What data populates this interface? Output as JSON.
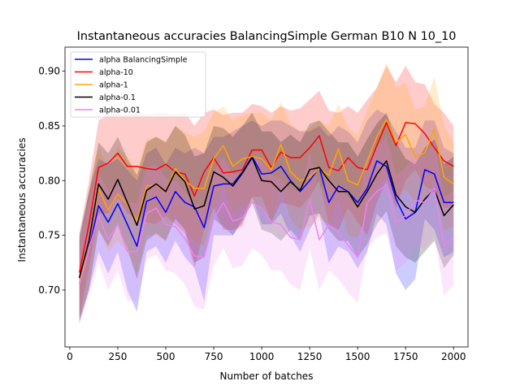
{
  "chart_data": {
    "type": "line",
    "title": "Instantaneous accuracies BalancingSimple German B10 N 10_10",
    "xlabel": "Number of batches",
    "ylabel": "Instantaneous accuracies",
    "xlim": [
      -25,
      2075
    ],
    "ylim": [
      0.648,
      0.922
    ],
    "xticks": [
      0,
      250,
      500,
      750,
      1000,
      1250,
      1500,
      1750,
      2000
    ],
    "yticks": [
      0.7,
      0.75,
      0.8,
      0.85,
      0.9
    ],
    "xtick_labels": [
      "0",
      "250",
      "500",
      "750",
      "1000",
      "1250",
      "1500",
      "1750",
      "2000"
    ],
    "ytick_labels": [
      "0.70",
      "0.75",
      "0.80",
      "0.85",
      "0.90"
    ],
    "grid": false,
    "legend_position": "top-left",
    "x": [
      50,
      100,
      150,
      200,
      250,
      300,
      350,
      400,
      450,
      500,
      550,
      600,
      650,
      700,
      750,
      800,
      850,
      900,
      950,
      1000,
      1050,
      1100,
      1150,
      1200,
      1250,
      1300,
      1350,
      1400,
      1450,
      1500,
      1550,
      1600,
      1650,
      1700,
      1750,
      1800,
      1850,
      1900,
      1950,
      2000
    ],
    "series": [
      {
        "name": "alpha BalancingSimple",
        "color": "#0000ff",
        "band_color": "#0000ff",
        "values": [
          0.712,
          0.738,
          0.777,
          0.762,
          0.779,
          0.76,
          0.74,
          0.781,
          0.785,
          0.771,
          0.79,
          0.78,
          0.776,
          0.757,
          0.795,
          0.797,
          0.797,
          0.808,
          0.822,
          0.806,
          0.807,
          0.813,
          0.8,
          0.79,
          0.8,
          0.812,
          0.78,
          0.795,
          0.79,
          0.78,
          0.793,
          0.818,
          0.813,
          0.783,
          0.765,
          0.771,
          0.81,
          0.806,
          0.78,
          0.78
        ],
        "upper": [
          0.745,
          0.79,
          0.82,
          0.815,
          0.82,
          0.81,
          0.8,
          0.825,
          0.83,
          0.815,
          0.83,
          0.825,
          0.83,
          0.825,
          0.84,
          0.84,
          0.845,
          0.85,
          0.855,
          0.85,
          0.855,
          0.855,
          0.85,
          0.845,
          0.845,
          0.85,
          0.84,
          0.85,
          0.845,
          0.835,
          0.855,
          0.865,
          0.86,
          0.845,
          0.83,
          0.83,
          0.855,
          0.855,
          0.83,
          0.825
        ],
        "lower": [
          0.67,
          0.7,
          0.735,
          0.715,
          0.735,
          0.7,
          0.68,
          0.735,
          0.74,
          0.725,
          0.745,
          0.73,
          0.72,
          0.69,
          0.75,
          0.75,
          0.75,
          0.765,
          0.785,
          0.76,
          0.76,
          0.77,
          0.75,
          0.735,
          0.755,
          0.77,
          0.725,
          0.74,
          0.735,
          0.72,
          0.735,
          0.77,
          0.76,
          0.715,
          0.7,
          0.71,
          0.765,
          0.755,
          0.73,
          0.735
        ]
      },
      {
        "name": "alpha-10",
        "color": "#ff0000",
        "band_color": "#ff0000",
        "values": [
          0.716,
          0.76,
          0.812,
          0.816,
          0.825,
          0.813,
          0.813,
          0.811,
          0.81,
          0.815,
          0.808,
          0.806,
          0.786,
          0.808,
          0.821,
          0.807,
          0.808,
          0.81,
          0.828,
          0.828,
          0.812,
          0.826,
          0.821,
          0.821,
          0.83,
          0.841,
          0.812,
          0.809,
          0.821,
          0.812,
          0.81,
          0.832,
          0.853,
          0.832,
          0.853,
          0.852,
          0.843,
          0.83,
          0.818,
          0.813
        ],
        "upper": [
          0.752,
          0.8,
          0.855,
          0.86,
          0.862,
          0.86,
          0.862,
          0.86,
          0.862,
          0.862,
          0.86,
          0.862,
          0.85,
          0.862,
          0.865,
          0.86,
          0.862,
          0.862,
          0.87,
          0.868,
          0.862,
          0.868,
          0.864,
          0.866,
          0.874,
          0.882,
          0.864,
          0.862,
          0.868,
          0.862,
          0.874,
          0.885,
          0.905,
          0.89,
          0.905,
          0.89,
          0.888,
          0.87,
          0.862,
          0.85
        ],
        "lower": [
          0.675,
          0.72,
          0.77,
          0.77,
          0.785,
          0.77,
          0.765,
          0.762,
          0.76,
          0.768,
          0.76,
          0.752,
          0.72,
          0.755,
          0.775,
          0.755,
          0.755,
          0.758,
          0.785,
          0.785,
          0.762,
          0.78,
          0.778,
          0.775,
          0.785,
          0.8,
          0.76,
          0.755,
          0.775,
          0.762,
          0.75,
          0.78,
          0.8,
          0.775,
          0.8,
          0.81,
          0.795,
          0.79,
          0.775,
          0.775
        ]
      },
      {
        "name": "alpha-1",
        "color": "#ffa500",
        "band_color": "#ffa500",
        "values": [
          0.706,
          0.745,
          0.793,
          0.773,
          0.788,
          0.778,
          0.763,
          0.795,
          0.796,
          0.79,
          0.811,
          0.8,
          0.793,
          0.793,
          0.82,
          0.832,
          0.813,
          0.82,
          0.822,
          0.82,
          0.81,
          0.833,
          0.808,
          0.8,
          0.803,
          0.811,
          0.805,
          0.829,
          0.8,
          0.796,
          0.818,
          0.84,
          0.856,
          0.835,
          0.842,
          0.822,
          0.825,
          0.847,
          0.803,
          0.797
        ],
        "upper": [
          0.74,
          0.79,
          0.83,
          0.812,
          0.83,
          0.822,
          0.81,
          0.838,
          0.84,
          0.835,
          0.85,
          0.845,
          0.84,
          0.845,
          0.862,
          0.868,
          0.855,
          0.86,
          0.862,
          0.862,
          0.855,
          0.872,
          0.852,
          0.845,
          0.848,
          0.855,
          0.85,
          0.87,
          0.848,
          0.842,
          0.865,
          0.885,
          0.908,
          0.885,
          0.89,
          0.865,
          0.868,
          0.895,
          0.85,
          0.835
        ],
        "lower": [
          0.67,
          0.705,
          0.755,
          0.735,
          0.745,
          0.735,
          0.715,
          0.75,
          0.75,
          0.745,
          0.77,
          0.755,
          0.745,
          0.74,
          0.775,
          0.795,
          0.77,
          0.778,
          0.78,
          0.775,
          0.765,
          0.795,
          0.765,
          0.755,
          0.758,
          0.765,
          0.76,
          0.785,
          0.75,
          0.748,
          0.77,
          0.795,
          0.805,
          0.785,
          0.792,
          0.78,
          0.782,
          0.8,
          0.755,
          0.758
        ]
      },
      {
        "name": "alpha-0.1",
        "color": "#000000",
        "band_color": "#000000",
        "values": [
          0.711,
          0.745,
          0.797,
          0.783,
          0.801,
          0.78,
          0.759,
          0.791,
          0.797,
          0.79,
          0.808,
          0.799,
          0.774,
          0.777,
          0.808,
          0.803,
          0.795,
          0.807,
          0.821,
          0.8,
          0.799,
          0.79,
          0.799,
          0.791,
          0.81,
          0.812,
          0.8,
          0.79,
          0.79,
          0.776,
          0.79,
          0.806,
          0.818,
          0.787,
          0.776,
          0.771,
          0.783,
          0.792,
          0.768,
          0.778
        ],
        "upper": [
          0.75,
          0.79,
          0.835,
          0.825,
          0.84,
          0.82,
          0.805,
          0.835,
          0.84,
          0.835,
          0.85,
          0.842,
          0.822,
          0.825,
          0.85,
          0.848,
          0.84,
          0.85,
          0.862,
          0.845,
          0.845,
          0.835,
          0.842,
          0.835,
          0.852,
          0.855,
          0.845,
          0.835,
          0.835,
          0.822,
          0.838,
          0.852,
          0.862,
          0.835,
          0.82,
          0.815,
          0.83,
          0.838,
          0.815,
          0.822
        ],
        "lower": [
          0.672,
          0.7,
          0.755,
          0.74,
          0.76,
          0.738,
          0.71,
          0.745,
          0.752,
          0.745,
          0.765,
          0.755,
          0.725,
          0.73,
          0.765,
          0.758,
          0.75,
          0.762,
          0.78,
          0.755,
          0.752,
          0.745,
          0.755,
          0.745,
          0.768,
          0.77,
          0.755,
          0.745,
          0.745,
          0.73,
          0.742,
          0.76,
          0.772,
          0.74,
          0.73,
          0.725,
          0.735,
          0.745,
          0.72,
          0.732
        ]
      },
      {
        "name": "alpha-0.01",
        "color": "#ee82ee",
        "band_color": "#ee82ee",
        "values": [
          0.705,
          0.738,
          0.768,
          0.746,
          0.76,
          0.735,
          0.735,
          0.77,
          0.775,
          0.76,
          0.758,
          0.747,
          0.731,
          0.73,
          0.765,
          0.78,
          0.763,
          0.766,
          0.78,
          0.775,
          0.762,
          0.76,
          0.748,
          0.746,
          0.782,
          0.746,
          0.76,
          0.752,
          0.741,
          0.73,
          0.78,
          0.79,
          0.796,
          0.762,
          0.768,
          0.782,
          0.78,
          0.793,
          0.74,
          0.748
        ],
        "upper": [
          0.74,
          0.78,
          0.808,
          0.79,
          0.8,
          0.78,
          0.78,
          0.812,
          0.815,
          0.802,
          0.8,
          0.79,
          0.778,
          0.778,
          0.808,
          0.822,
          0.805,
          0.808,
          0.822,
          0.818,
          0.805,
          0.802,
          0.792,
          0.79,
          0.825,
          0.79,
          0.802,
          0.795,
          0.785,
          0.775,
          0.822,
          0.832,
          0.84,
          0.805,
          0.812,
          0.825,
          0.822,
          0.835,
          0.785,
          0.79
        ],
        "lower": [
          0.668,
          0.695,
          0.725,
          0.7,
          0.718,
          0.69,
          0.69,
          0.728,
          0.732,
          0.718,
          0.715,
          0.705,
          0.685,
          0.682,
          0.722,
          0.738,
          0.72,
          0.722,
          0.738,
          0.732,
          0.718,
          0.718,
          0.705,
          0.7,
          0.738,
          0.7,
          0.718,
          0.71,
          0.698,
          0.688,
          0.738,
          0.748,
          0.752,
          0.718,
          0.725,
          0.74,
          0.738,
          0.75,
          0.695,
          0.705
        ]
      }
    ]
  }
}
